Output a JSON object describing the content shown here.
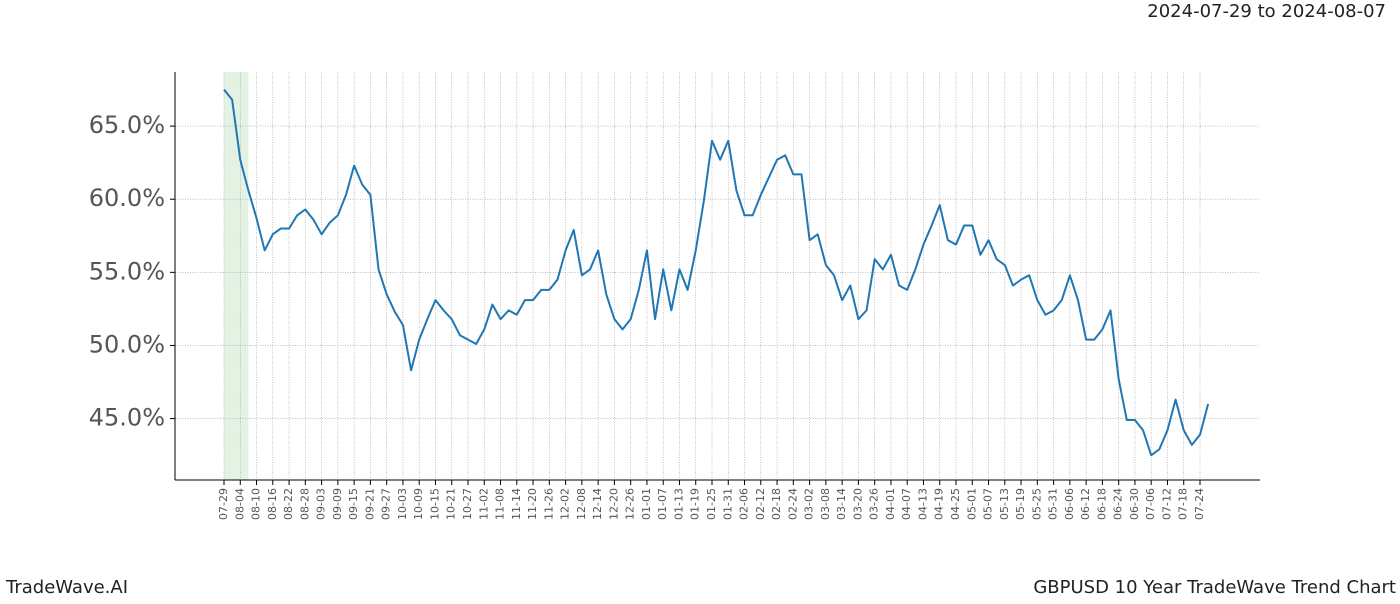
{
  "header": {
    "date_range": "2024-07-29 to 2024-08-07"
  },
  "footer": {
    "brand": "TradeWave.AI",
    "title": "GBPUSD 10 Year TradeWave Trend Chart"
  },
  "chart_data": {
    "type": "line",
    "color": "#1f77b4",
    "grid": true,
    "shade": [
      0,
      3
    ],
    "shade_color": "#d9ecd9",
    "categories": [
      "07-29",
      null,
      "08-04",
      null,
      "08-10",
      null,
      "08-16",
      null,
      "08-22",
      null,
      "08-28",
      null,
      "09-03",
      null,
      "09-09",
      null,
      "09-15",
      null,
      "09-21",
      null,
      "09-27",
      null,
      "10-03",
      null,
      "10-09",
      null,
      "10-15",
      null,
      "10-21",
      null,
      "10-27",
      null,
      "11-02",
      null,
      "11-08",
      null,
      "11-14",
      null,
      "11-20",
      null,
      "11-26",
      null,
      "12-02",
      null,
      "12-08",
      null,
      "12-14",
      null,
      "12-20",
      null,
      "12-26",
      null,
      "01-01",
      null,
      "01-07",
      null,
      "01-13",
      null,
      "01-19",
      null,
      "01-25",
      null,
      "01-31",
      null,
      "02-06",
      null,
      "02-12",
      null,
      "02-18",
      null,
      "02-24",
      null,
      "03-02",
      null,
      "03-08",
      null,
      "03-14",
      null,
      "03-20",
      null,
      "03-26",
      null,
      "04-01",
      null,
      "04-07",
      null,
      "04-13",
      null,
      "04-19",
      null,
      "04-25",
      null,
      "05-01",
      null,
      "05-07",
      null,
      "05-13",
      null,
      "05-19",
      null,
      "05-25",
      null,
      "05-31",
      null,
      "06-06",
      null,
      "06-12",
      null,
      "06-18",
      null,
      "06-24",
      null,
      "06-30",
      null,
      "07-06",
      null,
      "07-12",
      null,
      "07-18",
      null,
      "07-24",
      null
    ],
    "values": [
      67.5,
      66.8,
      62.7,
      60.6,
      58.7,
      56.5,
      57.6,
      58.0,
      58.0,
      58.9,
      59.3,
      58.6,
      57.6,
      58.4,
      58.9,
      60.3,
      62.3,
      61.0,
      60.3,
      55.2,
      53.5,
      52.3,
      51.4,
      48.3,
      50.4,
      51.8,
      53.1,
      52.4,
      51.8,
      50.7,
      50.4,
      50.1,
      51.1,
      52.8,
      51.8,
      52.4,
      52.1,
      53.1,
      53.1,
      53.8,
      53.8,
      54.5,
      56.5,
      57.9,
      54.8,
      55.2,
      56.5,
      53.5,
      51.8,
      51.1,
      51.8,
      53.8,
      56.5,
      51.8,
      55.2,
      52.4,
      55.2,
      53.8,
      56.5,
      59.9,
      64.0,
      62.7,
      64.0,
      60.6,
      58.9,
      58.9,
      60.3,
      61.5,
      62.7,
      63.0,
      61.7,
      61.7,
      57.2,
      57.6,
      55.5,
      54.8,
      53.1,
      54.1,
      51.8,
      52.4,
      55.9,
      55.2,
      56.2,
      54.1,
      53.8,
      55.2,
      56.9,
      58.2,
      59.6,
      57.2,
      56.9,
      58.2,
      58.2,
      56.2,
      57.2,
      55.9,
      55.5,
      54.1,
      54.5,
      54.8,
      53.1,
      52.1,
      52.4,
      53.1,
      54.8,
      53.1,
      50.4,
      50.4,
      51.1,
      52.4,
      47.7,
      44.9,
      44.9,
      44.2,
      42.5,
      42.9,
      44.2,
      46.3,
      44.2,
      43.2,
      43.9,
      46.0
    ],
    "ylim": [
      40.8,
      68.7
    ],
    "yticks": [
      {
        "value": 45,
        "label": "45.0%"
      },
      {
        "value": 50,
        "label": "50.0%"
      },
      {
        "value": 55,
        "label": "55.0%"
      },
      {
        "value": 60,
        "label": "60.0%"
      },
      {
        "value": 65,
        "label": "65.0%"
      }
    ]
  }
}
